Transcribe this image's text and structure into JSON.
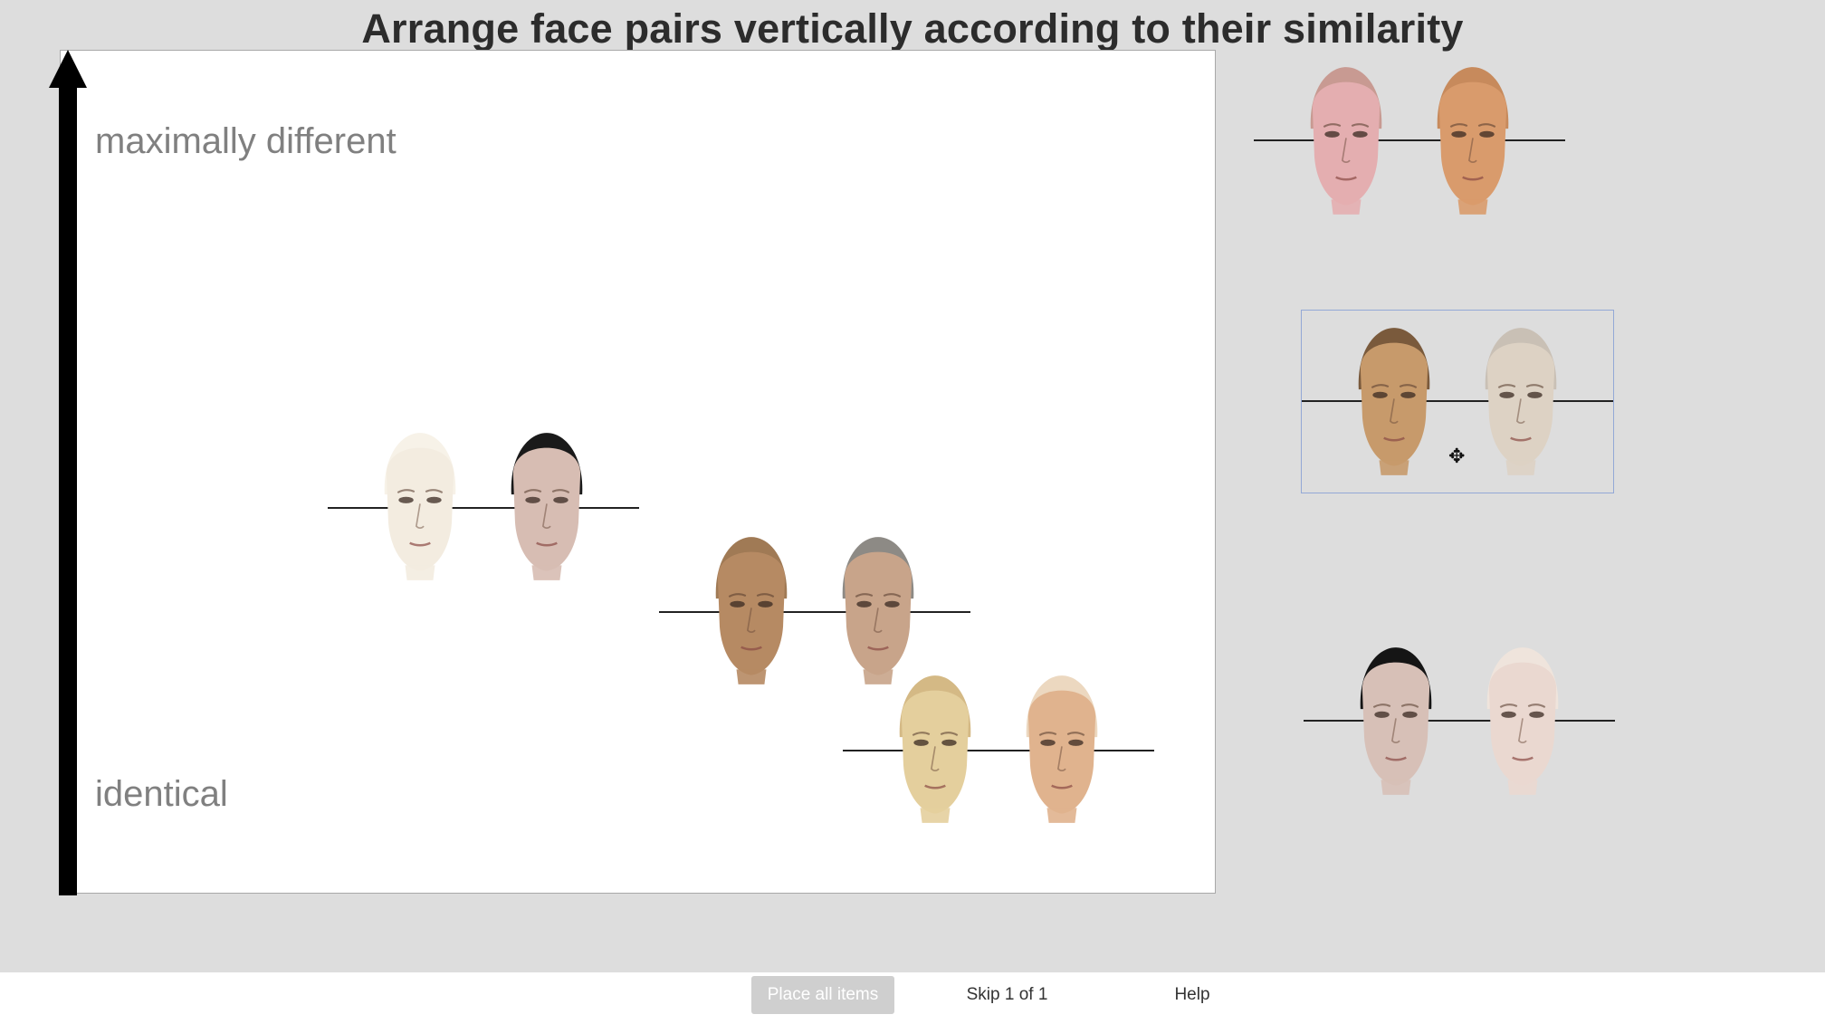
{
  "title": "Arrange face pairs vertically according to their similarity",
  "axis": {
    "top_label": "maximally different",
    "bottom_label": "identical"
  },
  "placed_pairs": [
    {
      "left_face": {
        "skin": "#f3ece0",
        "hair": "#f7f2e8"
      },
      "right_face": {
        "skin": "#d7bdb3",
        "hair": "#1a1a1a"
      }
    },
    {
      "left_face": {
        "skin": "#b68a63",
        "hair": "#a07a55"
      },
      "right_face": {
        "skin": "#c8a48a",
        "hair": "#8d8a85"
      }
    },
    {
      "left_face": {
        "skin": "#e4cf9d",
        "hair": "#d4b985"
      },
      "right_face": {
        "skin": "#e0b38e",
        "hair": "#ecd8c0"
      }
    }
  ],
  "unplaced_pairs": [
    {
      "left_face": {
        "skin": "#e4aeb0",
        "hair": "#c89a92"
      },
      "right_face": {
        "skin": "#d99b6c",
        "hair": "#c78a5c"
      },
      "selected": false
    },
    {
      "left_face": {
        "skin": "#c79a6b",
        "hair": "#7a5a3c"
      },
      "right_face": {
        "skin": "#ddd2c4",
        "hair": "#c9c0b5"
      },
      "selected": true
    },
    {
      "left_face": {
        "skin": "#d7c0b7",
        "hair": "#151515"
      },
      "right_face": {
        "skin": "#ead8d0",
        "hair": "#efe4dc"
      },
      "selected": false
    }
  ],
  "footer": {
    "place_all_label": "Place all items",
    "skip_label": "Skip 1 of 1",
    "help_label": "Help"
  },
  "icons": {
    "move_cursor": "move-cursor-icon"
  }
}
